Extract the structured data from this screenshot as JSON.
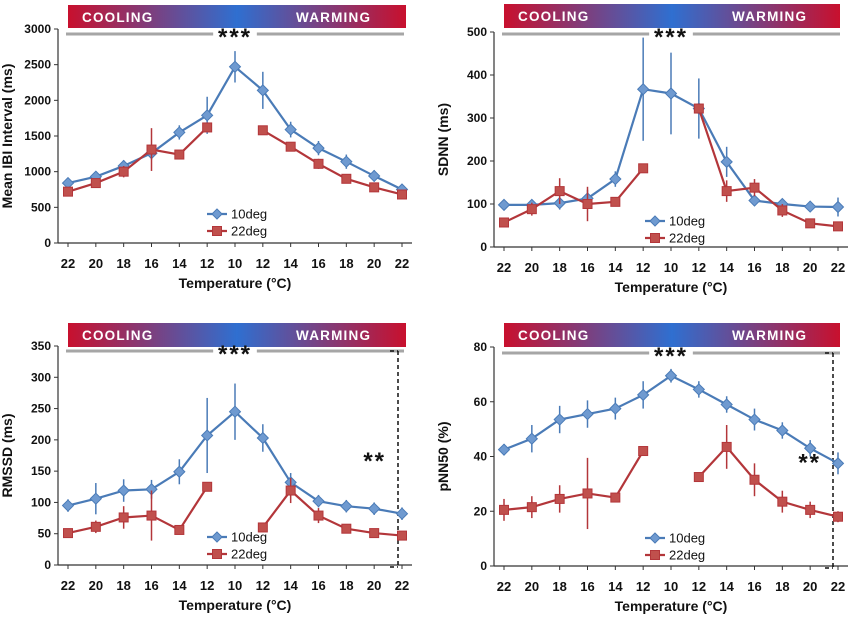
{
  "chart_data": [
    {
      "type": "line",
      "ylabel": "Mean IBI Interval (ms)",
      "xlabel": "Temperature (°C)",
      "x_ticks": [
        "22",
        "20",
        "18",
        "16",
        "14",
        "12",
        "10",
        "12",
        "14",
        "16",
        "18",
        "20",
        "22"
      ],
      "ylim": [
        0,
        3000
      ],
      "y_ticks": [
        "0",
        "500",
        "1000",
        "1500",
        "2000",
        "2500",
        "3000"
      ],
      "phase_labels": {
        "left": "COOLING",
        "right": "WARMING"
      },
      "significance": "***",
      "side_significance": "",
      "legend": [
        "10deg",
        "22deg"
      ],
      "series": [
        {
          "name": "10deg",
          "values": [
            840,
            930,
            1080,
            1260,
            1550,
            1790,
            2470,
            2140,
            1590,
            1330,
            1140,
            940,
            750
          ],
          "err": [
            60,
            70,
            80,
            90,
            100,
            260,
            220,
            260,
            110,
            100,
            100,
            80,
            50
          ]
        },
        {
          "name": "22deg",
          "values": [
            720,
            840,
            1000,
            1310,
            1240,
            1620,
            null,
            1580,
            1350,
            1110,
            900,
            780,
            680
          ],
          "err": [
            40,
            50,
            80,
            300,
            30,
            40,
            null,
            30,
            60,
            70,
            50,
            40,
            30
          ]
        }
      ]
    },
    {
      "type": "line",
      "ylabel": "SDNN (ms)",
      "xlabel": "Temperature (°C)",
      "x_ticks": [
        "22",
        "20",
        "18",
        "16",
        "14",
        "12",
        "10",
        "12",
        "14",
        "16",
        "18",
        "20",
        "22"
      ],
      "ylim": [
        0,
        500
      ],
      "y_ticks": [
        "0",
        "100",
        "200",
        "300",
        "400",
        "500"
      ],
      "phase_labels": {
        "left": "COOLING",
        "right": "WARMING"
      },
      "significance": "***",
      "side_significance": "",
      "legend": [
        "10deg",
        "22deg"
      ],
      "series": [
        {
          "name": "10deg",
          "values": [
            98,
            98,
            102,
            113,
            158,
            367,
            357,
            322,
            198,
            108,
            100,
            94,
            93
          ],
          "err": [
            12,
            12,
            15,
            20,
            18,
            120,
            95,
            70,
            35,
            12,
            10,
            10,
            22
          ]
        },
        {
          "name": "22deg",
          "values": [
            57,
            88,
            130,
            100,
            105,
            183,
            null,
            322,
            130,
            138,
            85,
            55,
            48
          ],
          "err": [
            8,
            15,
            30,
            40,
            8,
            5,
            null,
            10,
            25,
            20,
            15,
            5,
            5
          ]
        }
      ]
    },
    {
      "type": "line",
      "ylabel": "RMSSD (ms)",
      "xlabel": "Temperature (°C)",
      "x_ticks": [
        "22",
        "20",
        "18",
        "16",
        "14",
        "12",
        "10",
        "12",
        "14",
        "16",
        "18",
        "20",
        "22"
      ],
      "ylim": [
        0,
        350
      ],
      "y_ticks": [
        "0",
        "50",
        "100",
        "150",
        "200",
        "250",
        "300",
        "350"
      ],
      "phase_labels": {
        "left": "COOLING",
        "right": "WARMING"
      },
      "significance": "***",
      "side_significance": "**",
      "legend": [
        "10deg",
        "22deg"
      ],
      "series": [
        {
          "name": "10deg",
          "values": [
            95,
            106,
            119,
            121,
            149,
            207,
            245,
            203,
            132,
            102,
            94,
            90,
            82
          ],
          "err": [
            10,
            25,
            18,
            15,
            20,
            60,
            45,
            22,
            15,
            10,
            10,
            10,
            10
          ]
        },
        {
          "name": "22deg",
          "values": [
            51,
            61,
            76,
            79,
            56,
            125,
            null,
            60,
            119,
            79,
            58,
            51,
            47
          ],
          "err": [
            5,
            10,
            18,
            40,
            4,
            3,
            null,
            4,
            20,
            12,
            6,
            5,
            4
          ]
        }
      ]
    },
    {
      "type": "line",
      "ylabel": "pNN50 (%)",
      "xlabel": "Temperature (°C)",
      "x_ticks": [
        "22",
        "20",
        "18",
        "16",
        "14",
        "12",
        "10",
        "12",
        "14",
        "16",
        "18",
        "20",
        "22"
      ],
      "ylim": [
        0,
        80
      ],
      "y_ticks": [
        "0",
        "20",
        "40",
        "60",
        "80"
      ],
      "phase_labels": {
        "left": "COOLING",
        "right": "WARMING"
      },
      "significance": "***",
      "side_significance": "**",
      "legend": [
        "10deg",
        "22deg"
      ],
      "series": [
        {
          "name": "10deg",
          "values": [
            42.5,
            46.5,
            53.5,
            55.5,
            57.5,
            62.5,
            69.5,
            64.5,
            59,
            53.5,
            49.5,
            43,
            37.5
          ],
          "err": [
            2,
            5,
            5,
            5,
            4,
            5,
            2.5,
            3,
            3,
            4,
            3,
            3,
            4
          ]
        },
        {
          "name": "22deg",
          "values": [
            20.5,
            21.5,
            24.5,
            26.5,
            25,
            42,
            null,
            32.5,
            43.5,
            31.5,
            23.5,
            20.5,
            18
          ],
          "err": [
            4,
            4,
            5,
            13,
            1,
            1,
            null,
            1,
            8,
            6,
            4,
            3,
            2
          ]
        }
      ]
    }
  ],
  "colors": {
    "series_10deg": "#4a7bb7",
    "series_10deg_marker": "#6f9ad0",
    "series_22deg": "#b3363a",
    "series_22deg_marker": "#c0504d",
    "bar_red": "#c8102e",
    "bar_blue": "#2f6fd0",
    "phase_line": "#a6a6a6"
  }
}
